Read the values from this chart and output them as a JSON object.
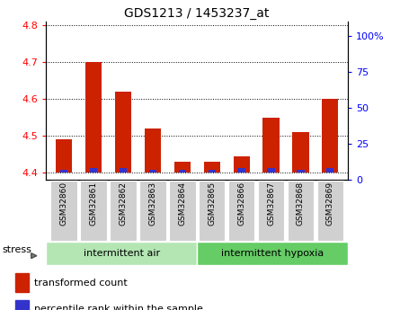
{
  "title": "GDS1213 / 1453237_at",
  "samples": [
    "GSM32860",
    "GSM32861",
    "GSM32862",
    "GSM32863",
    "GSM32864",
    "GSM32865",
    "GSM32866",
    "GSM32867",
    "GSM32868",
    "GSM32869"
  ],
  "transformed_counts": [
    4.49,
    4.7,
    4.62,
    4.52,
    4.43,
    4.43,
    4.445,
    4.55,
    4.51,
    4.6
  ],
  "percentile_ranks": [
    2,
    3,
    3,
    2,
    2,
    2,
    3,
    3,
    2,
    3
  ],
  "ylim_left": [
    4.38,
    4.81
  ],
  "ylim_right": [
    0,
    110
  ],
  "yticks_left": [
    4.4,
    4.5,
    4.6,
    4.7,
    4.8
  ],
  "yticks_right": [
    0,
    25,
    50,
    75,
    100
  ],
  "groups": [
    {
      "label": "intermittent air",
      "start": 0,
      "end": 5,
      "color": "#b3e6b3"
    },
    {
      "label": "intermittent hypoxia",
      "start": 5,
      "end": 10,
      "color": "#66cc66"
    }
  ],
  "group_label": "stress",
  "bar_bottom": 4.4,
  "bar_width": 0.55,
  "red_color": "#cc2200",
  "blue_color": "#3333cc",
  "percentile_scale_factor": 0.004,
  "plot_bg": "#ffffff",
  "sample_box_color": "#d0d0d0",
  "legend_red_label": "transformed count",
  "legend_blue_label": "percentile rank within the sample"
}
